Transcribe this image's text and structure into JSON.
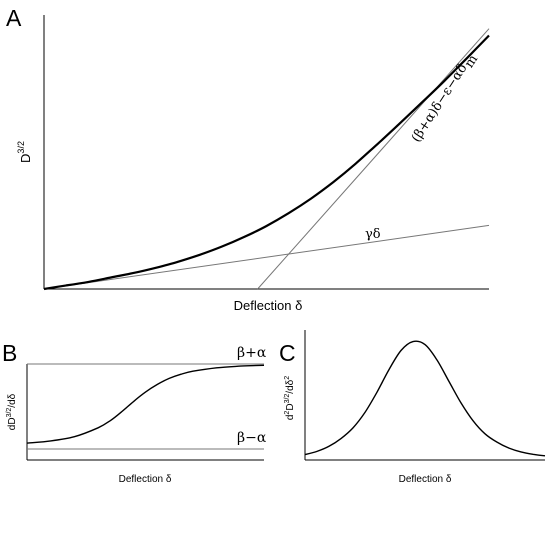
{
  "chart_data": [
    {
      "panel": "A",
      "type": "line",
      "xlabel": "Deflection δ",
      "ylabel": "D",
      "ylabel_exponent": "3/2",
      "x_range": [
        0,
        1
      ],
      "y_range": [
        0,
        1
      ],
      "series": [
        {
          "x": [
            0,
            0.05,
            0.1,
            0.15,
            0.2,
            0.25,
            0.3,
            0.35,
            0.4,
            0.45,
            0.5,
            0.55,
            0.6,
            0.65,
            0.7,
            0.75,
            0.8,
            0.85,
            0.9,
            0.95,
            1.0
          ],
          "y": [
            0,
            0.013,
            0.026,
            0.042,
            0.058,
            0.077,
            0.099,
            0.125,
            0.155,
            0.19,
            0.23,
            0.277,
            0.33,
            0.39,
            0.457,
            0.53,
            0.605,
            0.682,
            0.76,
            0.842,
            0.925
          ]
        },
        {
          "name": "γδ",
          "x": [
            0,
            1.0
          ],
          "y": [
            0,
            0.232
          ]
        },
        {
          "name": "(β+α)δ−ε−αδm",
          "x": [
            0.48,
            1.0
          ],
          "y": [
            0,
            0.95
          ]
        }
      ],
      "annotations": [
        "γδ",
        "(β+α)δ−ε−αδ",
        "m"
      ]
    },
    {
      "panel": "B",
      "type": "line",
      "xlabel": "Deflection δ",
      "ylabel": "dD",
      "ylabel_exponent": "3/2",
      "ylabel_suffix": "/dδ",
      "x_range": [
        0,
        1
      ],
      "y_range": [
        0,
        1
      ],
      "series": [
        {
          "x": [
            0,
            0.1,
            0.2,
            0.3,
            0.35,
            0.4,
            0.45,
            0.5,
            0.55,
            0.6,
            0.65,
            0.7,
            0.8,
            0.9,
            1.0
          ],
          "y": [
            0.07,
            0.095,
            0.145,
            0.25,
            0.33,
            0.44,
            0.56,
            0.67,
            0.76,
            0.83,
            0.88,
            0.915,
            0.955,
            0.975,
            0.985
          ]
        },
        {
          "name": "β+α",
          "x": [
            0,
            1
          ],
          "y": [
            1,
            1
          ]
        },
        {
          "name": "β−α",
          "x": [
            0,
            1
          ],
          "y": [
            0,
            0
          ]
        }
      ],
      "annotations": [
        "β+α",
        "β−α"
      ]
    },
    {
      "panel": "C",
      "type": "line",
      "xlabel": "Deflection δ",
      "ylabel": "d",
      "ylabel_exponent": "2",
      "ylabel_mid": "D",
      "ylabel_exponent2": "3/2",
      "ylabel_suffix": "/dδ",
      "ylabel_exponent3": "2",
      "x_range": [
        0,
        1
      ],
      "y_range": [
        0,
        1
      ],
      "series": [
        {
          "x": [
            0,
            0.05,
            0.1,
            0.15,
            0.2,
            0.25,
            0.3,
            0.35,
            0.4,
            0.45,
            0.5,
            0.55,
            0.6,
            0.65,
            0.7,
            0.75,
            0.8,
            0.85,
            0.9,
            0.95,
            1.0
          ],
          "y": [
            0.045,
            0.072,
            0.115,
            0.18,
            0.27,
            0.4,
            0.57,
            0.76,
            0.92,
            0.995,
            0.97,
            0.84,
            0.66,
            0.48,
            0.33,
            0.22,
            0.15,
            0.1,
            0.068,
            0.048,
            0.035
          ]
        }
      ]
    }
  ],
  "panel_labels": [
    "A",
    "B",
    "C"
  ],
  "colors": {
    "curve": "#000000",
    "guide": "#777777",
    "axis": "#000000"
  }
}
